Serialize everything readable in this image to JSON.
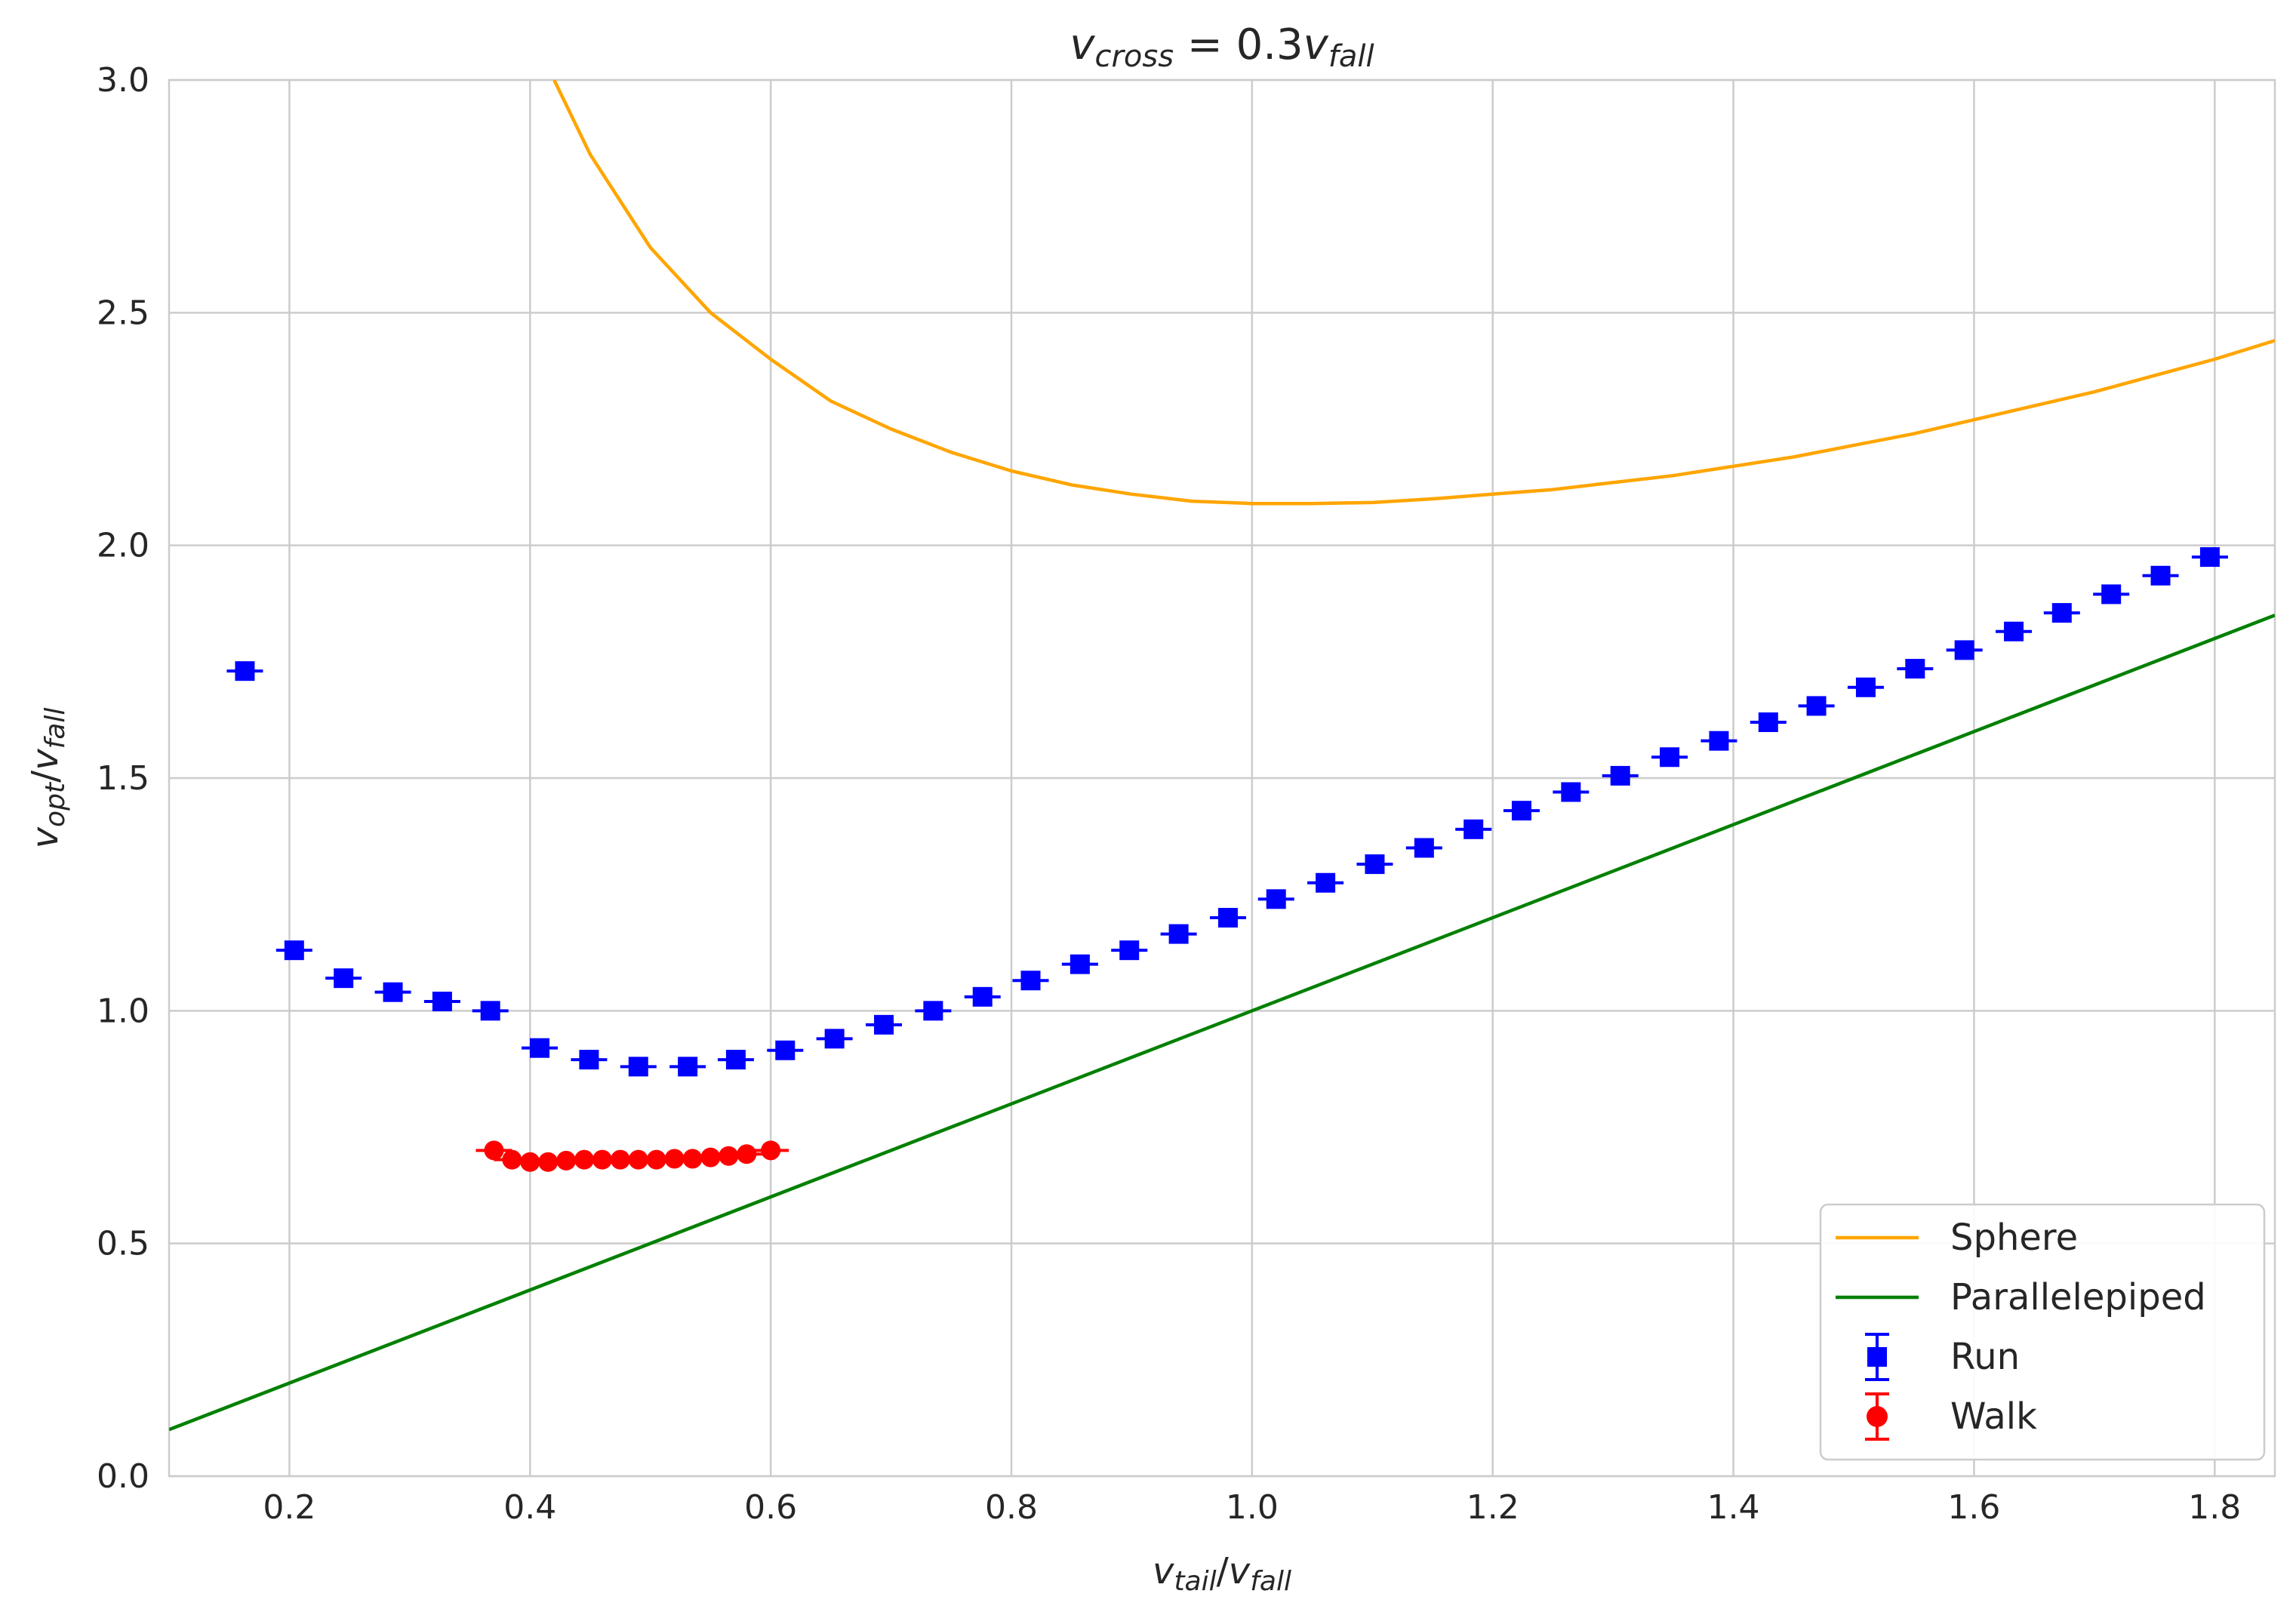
{
  "chart_data": {
    "type": "line",
    "title": {
      "base": "v",
      "sub": "cross",
      "eq": " = 0.3",
      "base2": "v",
      "sub2": "fall"
    },
    "xlabel": {
      "a": "v",
      "asub": "tail",
      "slash": "/",
      "b": "v",
      "bsub": "fall"
    },
    "ylabel": {
      "a": "v",
      "asub": "opt",
      "slash": "/",
      "b": "v",
      "bsub": "fall"
    },
    "xlim": [
      0.1,
      1.85
    ],
    "ylim": [
      0.0,
      3.0
    ],
    "xticks": [
      0.2,
      0.4,
      0.6,
      0.8,
      1.0,
      1.2,
      1.4,
      1.6,
      1.8
    ],
    "xtick_labels": [
      "0.2",
      "0.4",
      "0.6",
      "0.8",
      "1.0",
      "1.2",
      "1.4",
      "1.6",
      "1.8"
    ],
    "yticks": [
      0.0,
      0.5,
      1.0,
      1.5,
      2.0,
      2.5,
      3.0
    ],
    "ytick_labels": [
      "0.0",
      "0.5",
      "1.0",
      "1.5",
      "2.0",
      "2.5",
      "3.0"
    ],
    "grid": true,
    "legend_position": "lower-right",
    "series": [
      {
        "name": "Sphere",
        "kind": "line",
        "color": "#ffa500",
        "x": [
          0.42,
          0.45,
          0.5,
          0.55,
          0.6,
          0.65,
          0.7,
          0.75,
          0.8,
          0.85,
          0.9,
          0.95,
          1.0,
          1.05,
          1.1,
          1.15,
          1.2,
          1.25,
          1.3,
          1.35,
          1.4,
          1.45,
          1.5,
          1.55,
          1.6,
          1.65,
          1.7,
          1.75,
          1.8,
          1.85
        ],
        "y": [
          3.0,
          2.84,
          2.64,
          2.5,
          2.4,
          2.31,
          2.25,
          2.2,
          2.16,
          2.13,
          2.11,
          2.095,
          2.09,
          2.09,
          2.092,
          2.1,
          2.11,
          2.12,
          2.135,
          2.15,
          2.17,
          2.19,
          2.215,
          2.24,
          2.27,
          2.3,
          2.33,
          2.365,
          2.4,
          2.44
        ]
      },
      {
        "name": "Parallelepiped",
        "kind": "line",
        "color": "#008000",
        "x": [
          0.1,
          1.85
        ],
        "y": [
          0.1,
          1.85
        ]
      },
      {
        "name": "Run",
        "kind": "errorbar",
        "marker": "square",
        "color": "#0000ff",
        "x": [
          0.163,
          0.204,
          0.245,
          0.286,
          0.327,
          0.367,
          0.408,
          0.449,
          0.49,
          0.531,
          0.571,
          0.612,
          0.653,
          0.694,
          0.735,
          0.776,
          0.816,
          0.857,
          0.898,
          0.939,
          0.98,
          1.02,
          1.061,
          1.102,
          1.143,
          1.184,
          1.224,
          1.265,
          1.306,
          1.347,
          1.388,
          1.429,
          1.469,
          1.51,
          1.551,
          1.592,
          1.633,
          1.673,
          1.714,
          1.755,
          1.796
        ],
        "y": [
          1.73,
          1.13,
          1.07,
          1.04,
          1.02,
          1.0,
          0.92,
          0.895,
          0.88,
          0.88,
          0.895,
          0.915,
          0.94,
          0.97,
          1.0,
          1.03,
          1.065,
          1.1,
          1.13,
          1.165,
          1.2,
          1.24,
          1.275,
          1.315,
          1.35,
          1.39,
          1.43,
          1.47,
          1.505,
          1.545,
          1.58,
          1.62,
          1.655,
          1.695,
          1.735,
          1.775,
          1.815,
          1.855,
          1.895,
          1.935,
          1.975
        ]
      },
      {
        "name": "Walk",
        "kind": "errorbar",
        "marker": "circle",
        "color": "#ff0000",
        "x": [
          0.37,
          0.385,
          0.4,
          0.415,
          0.43,
          0.445,
          0.46,
          0.475,
          0.49,
          0.505,
          0.52,
          0.535,
          0.55,
          0.565,
          0.58,
          0.6
        ],
        "y": [
          0.7,
          0.68,
          0.675,
          0.675,
          0.678,
          0.68,
          0.68,
          0.68,
          0.68,
          0.68,
          0.682,
          0.682,
          0.685,
          0.688,
          0.692,
          0.7
        ]
      }
    ]
  }
}
